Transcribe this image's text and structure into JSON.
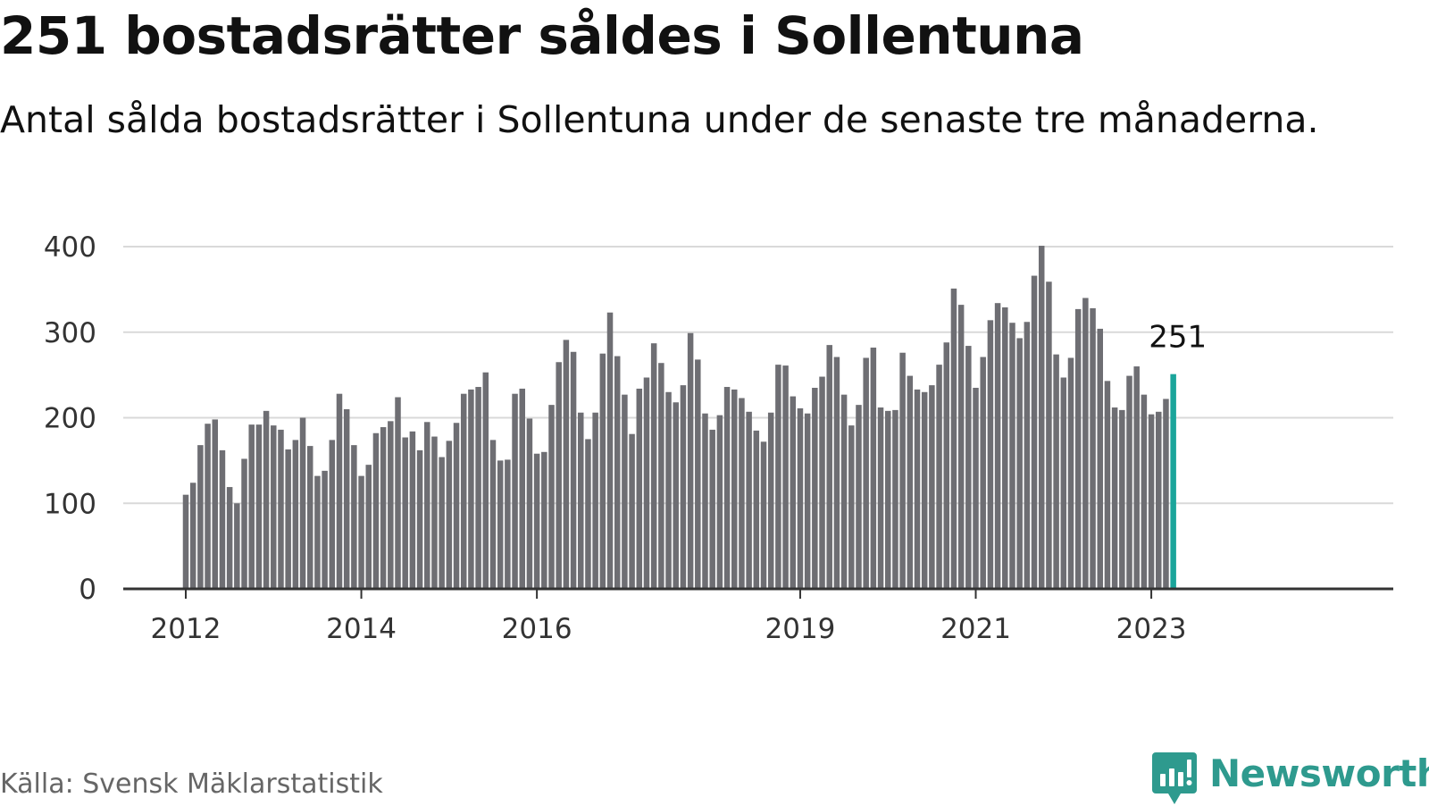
{
  "title": "251 bostadsrätter såldes i Sollentuna",
  "subtitle": "Antal sålda bostadsrätter i Sollentuna under de senaste tre månaderna.",
  "source": "Källa: Svensk Mäklarstatistik",
  "brand": "Newsworthy",
  "colors": {
    "bar": "#6e6e73",
    "highlight": "#1aa59b",
    "brand": "#2e9a8e",
    "grid": "#d9d9d9",
    "axis": "#333333"
  },
  "chart_data": {
    "type": "bar",
    "title": "251 bostadsrätter såldes i Sollentuna",
    "subtitle": "Antal sålda bostadsrätter i Sollentuna under de senaste tre månaderna.",
    "xlabel": "",
    "ylabel": "",
    "ylim": [
      0,
      400
    ],
    "y_ticks": [
      0,
      100,
      200,
      300,
      400
    ],
    "x_ticks": [
      {
        "label": "2012",
        "index": 0
      },
      {
        "label": "2014",
        "index": 24
      },
      {
        "label": "2016",
        "index": 48
      },
      {
        "label": "2019",
        "index": 84
      },
      {
        "label": "2021",
        "index": 108
      },
      {
        "label": "2023",
        "index": 132
      }
    ],
    "grid": true,
    "highlight_index": 135,
    "highlight_label": "251",
    "categories": [
      "2012-01",
      "2012-02",
      "2012-03",
      "2012-04",
      "2012-05",
      "2012-06",
      "2012-07",
      "2012-08",
      "2012-09",
      "2012-10",
      "2012-11",
      "2012-12",
      "2013-01",
      "2013-02",
      "2013-03",
      "2013-04",
      "2013-05",
      "2013-06",
      "2013-07",
      "2013-08",
      "2013-09",
      "2013-10",
      "2013-11",
      "2013-12",
      "2014-01",
      "2014-02",
      "2014-03",
      "2014-04",
      "2014-05",
      "2014-06",
      "2014-07",
      "2014-08",
      "2014-09",
      "2014-10",
      "2014-11",
      "2014-12",
      "2015-01",
      "2015-02",
      "2015-03",
      "2015-04",
      "2015-05",
      "2015-06",
      "2015-07",
      "2015-08",
      "2015-09",
      "2015-10",
      "2015-11",
      "2015-12",
      "2016-01",
      "2016-02",
      "2016-03",
      "2016-04",
      "2016-05",
      "2016-06",
      "2016-07",
      "2016-08",
      "2016-09",
      "2016-10",
      "2016-11",
      "2016-12",
      "2017-01",
      "2017-02",
      "2017-03",
      "2017-04",
      "2017-05",
      "2017-06",
      "2017-07",
      "2017-08",
      "2017-09",
      "2017-10",
      "2017-11",
      "2017-12",
      "2018-01",
      "2018-02",
      "2018-03",
      "2018-04",
      "2018-05",
      "2018-06",
      "2018-07",
      "2018-08",
      "2018-09",
      "2018-10",
      "2018-11",
      "2018-12",
      "2019-01",
      "2019-02",
      "2019-03",
      "2019-04",
      "2019-05",
      "2019-06",
      "2019-07",
      "2019-08",
      "2019-09",
      "2019-10",
      "2019-11",
      "2019-12",
      "2020-01",
      "2020-02",
      "2020-03",
      "2020-04",
      "2020-05",
      "2020-06",
      "2020-07",
      "2020-08",
      "2020-09",
      "2020-10",
      "2020-11",
      "2020-12",
      "2021-01",
      "2021-02",
      "2021-03",
      "2021-04",
      "2021-05",
      "2021-06",
      "2021-07",
      "2021-08",
      "2021-09",
      "2021-10",
      "2021-11",
      "2021-12",
      "2022-01",
      "2022-02",
      "2022-03",
      "2022-04",
      "2022-05",
      "2022-06",
      "2022-07",
      "2022-08",
      "2022-09",
      "2022-10",
      "2022-11",
      "2022-12",
      "2023-01",
      "2023-02",
      "2023-03",
      "2023-04"
    ],
    "values": [
      110,
      124,
      168,
      193,
      198,
      162,
      119,
      100,
      152,
      192,
      192,
      208,
      191,
      186,
      163,
      174,
      200,
      167,
      132,
      138,
      174,
      228,
      210,
      168,
      132,
      145,
      182,
      189,
      196,
      224,
      177,
      184,
      162,
      195,
      178,
      154,
      173,
      194,
      228,
      233,
      236,
      253,
      174,
      150,
      151,
      228,
      234,
      199,
      158,
      160,
      215,
      265,
      291,
      277,
      206,
      175,
      206,
      275,
      323,
      272,
      227,
      181,
      234,
      247,
      287,
      264,
      230,
      218,
      238,
      299,
      268,
      205,
      186,
      203,
      236,
      233,
      223,
      207,
      185,
      172,
      206,
      262,
      261,
      225,
      211,
      205,
      235,
      248,
      285,
      271,
      227,
      191,
      215,
      270,
      282,
      212,
      208,
      209,
      276,
      249,
      233,
      230,
      238,
      262,
      288,
      351,
      332,
      284,
      235,
      271,
      314,
      334,
      329,
      311,
      293,
      312,
      366,
      401,
      359,
      274,
      247,
      270,
      327,
      340,
      328,
      304,
      243,
      212,
      209,
      249,
      260,
      227,
      204,
      207,
      222,
      251
    ]
  }
}
